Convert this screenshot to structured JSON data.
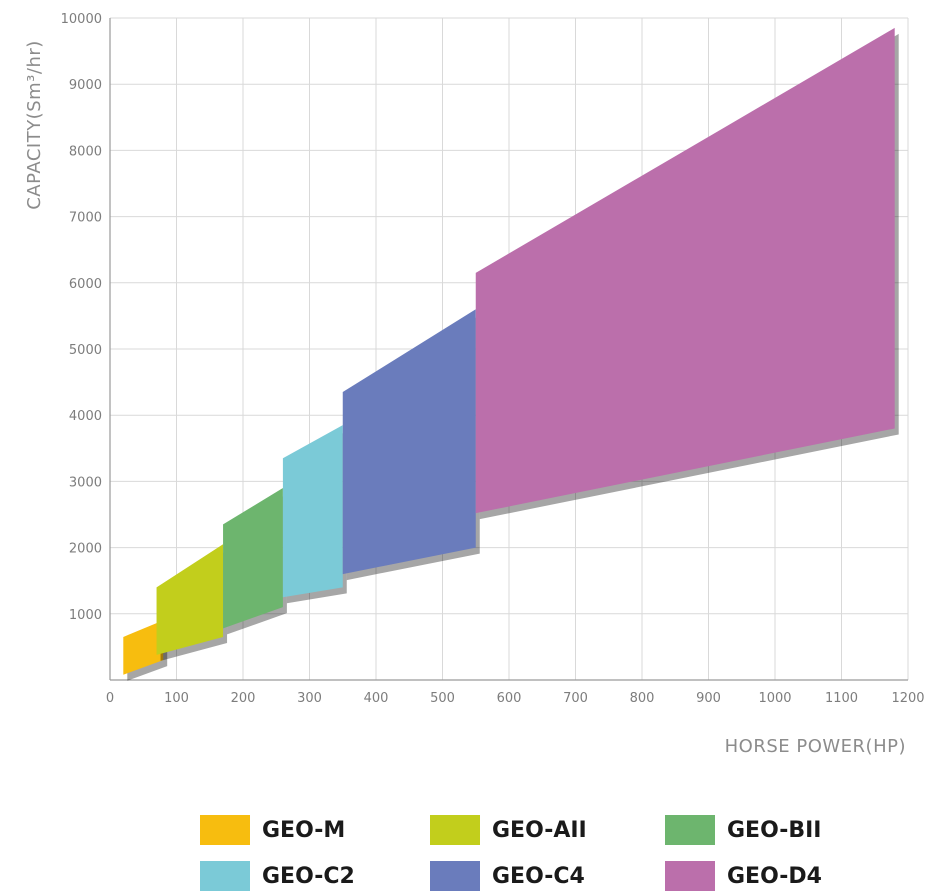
{
  "chart_data": {
    "type": "area",
    "xlabel": "HORSE POWER(HP)",
    "ylabel": "CAPACITY(Sm³/hr)",
    "xlim": [
      0,
      1200
    ],
    "ylim": [
      0,
      10000
    ],
    "x_ticks": [
      0,
      100,
      200,
      300,
      400,
      500,
      600,
      700,
      800,
      900,
      1000,
      1100,
      1200
    ],
    "y_ticks": [
      1000,
      2000,
      3000,
      4000,
      5000,
      6000,
      7000,
      8000,
      9000,
      10000
    ],
    "grid": true,
    "legend_position": "bottom",
    "series": [
      {
        "name": "GEO-M",
        "color": "#f7bd0f",
        "hp_min": 20,
        "hp_max": 80,
        "min_capacity": [
          80,
          300
        ],
        "max_capacity": [
          650,
          900
        ]
      },
      {
        "name": "GEO-AII",
        "color": "#c2ce1c",
        "hp_min": 70,
        "hp_max": 170,
        "min_capacity": [
          380,
          650
        ],
        "max_capacity": [
          1400,
          2050
        ]
      },
      {
        "name": "GEO-BII",
        "color": "#6db56e",
        "hp_min": 170,
        "hp_max": 260,
        "min_capacity": [
          780,
          1100
        ],
        "max_capacity": [
          2350,
          2900
        ]
      },
      {
        "name": "GEO-C2",
        "color": "#7bcad7",
        "hp_min": 260,
        "hp_max": 350,
        "min_capacity": [
          1250,
          1400
        ],
        "max_capacity": [
          3350,
          3850
        ]
      },
      {
        "name": "GEO-C4",
        "color": "#6a7cbc",
        "hp_min": 350,
        "hp_max": 550,
        "min_capacity": [
          1600,
          2000
        ],
        "max_capacity": [
          4350,
          5600
        ]
      },
      {
        "name": "GEO-D4",
        "color": "#bb6fab",
        "hp_min": 550,
        "hp_max": 1180,
        "min_capacity": [
          2520,
          3800
        ],
        "max_capacity": [
          6150,
          9850
        ]
      }
    ]
  }
}
